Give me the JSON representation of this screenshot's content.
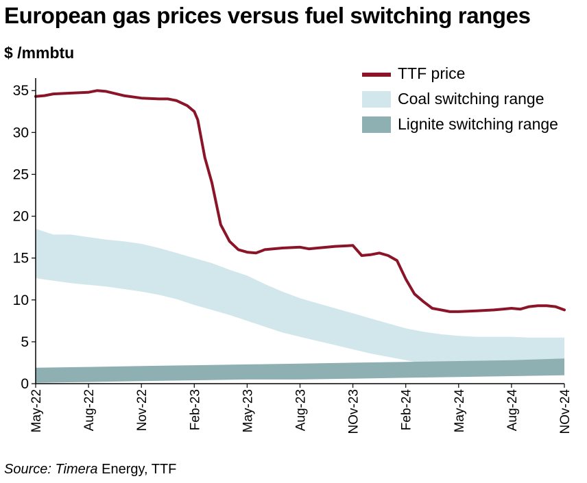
{
  "chart_data": {
    "type": "area",
    "title": "European gas prices versus fuel switching ranges",
    "ylabel": "$ /mmbtu",
    "xlabel": "",
    "ylim": [
      0,
      36
    ],
    "yticks": [
      0,
      5,
      10,
      15,
      20,
      25,
      30,
      35
    ],
    "x_range": [
      0,
      30
    ],
    "xtick_positions": [
      0,
      3,
      6,
      9,
      12,
      15,
      18,
      21,
      24,
      27,
      30
    ],
    "xtick_labels": [
      "May-22",
      "Aug-22",
      "Nov-22",
      "Feb-23",
      "May-23",
      "Aug-23",
      "NOv-23",
      "Feb-24",
      "May-24",
      "Aug-24",
      "NOv-24"
    ],
    "grid": false,
    "legend_position": "top-right",
    "series": [
      {
        "name": "TTF price",
        "kind": "line",
        "color": "#8b1528",
        "x": [
          0,
          0.5,
          1,
          2,
          3,
          3.5,
          4,
          5,
          6,
          7,
          7.5,
          8,
          8.6,
          9,
          9.2,
          9.6,
          10,
          10.5,
          11,
          11.5,
          12,
          12.5,
          13,
          14,
          15,
          15.5,
          16,
          17,
          18,
          18.5,
          19,
          19.5,
          20,
          20.5,
          21,
          21.5,
          22,
          22.5,
          23,
          23.5,
          24,
          25,
          26,
          26.5,
          27,
          27.5,
          28,
          28.5,
          29,
          29.5,
          30
        ],
        "values": [
          34.3,
          34.4,
          34.6,
          34.7,
          34.8,
          35.0,
          34.9,
          34.4,
          34.1,
          34.0,
          34.0,
          33.8,
          33.2,
          32.5,
          31.5,
          27.0,
          24.0,
          19.0,
          17.0,
          16.0,
          15.7,
          15.6,
          16.0,
          16.2,
          16.3,
          16.1,
          16.2,
          16.4,
          16.5,
          15.3,
          15.4,
          15.6,
          15.3,
          14.7,
          12.5,
          10.7,
          9.8,
          9.0,
          8.8,
          8.6,
          8.6,
          8.7,
          8.8,
          8.9,
          9.0,
          8.9,
          9.2,
          9.3,
          9.3,
          9.2,
          8.8
        ]
      },
      {
        "name": "Coal switching range",
        "kind": "band",
        "color": "#d2e7ec",
        "x": [
          0,
          1,
          2,
          3,
          4,
          5,
          6,
          7,
          8,
          9,
          10,
          11,
          12,
          13,
          14,
          15,
          16,
          17,
          18,
          19,
          20,
          21,
          22,
          23,
          24,
          25,
          26,
          27,
          28,
          29,
          30
        ],
        "upper": [
          18.5,
          17.8,
          17.8,
          17.5,
          17.2,
          17.0,
          16.7,
          16.2,
          15.6,
          15.0,
          14.4,
          13.6,
          12.9,
          11.9,
          11.0,
          10.2,
          9.6,
          9.0,
          8.4,
          7.8,
          7.2,
          6.6,
          6.2,
          5.9,
          5.7,
          5.6,
          5.6,
          5.6,
          5.5,
          5.5,
          5.5
        ],
        "lower": [
          12.6,
          12.3,
          12.0,
          11.8,
          11.6,
          11.3,
          11.0,
          10.6,
          10.1,
          9.4,
          8.8,
          8.2,
          7.5,
          6.8,
          6.1,
          5.6,
          5.1,
          4.6,
          4.1,
          3.6,
          3.2,
          2.8,
          2.4,
          2.0,
          1.6,
          1.5,
          1.4,
          1.3,
          1.2,
          1.1,
          1.0
        ]
      },
      {
        "name": "Lignite switching range",
        "kind": "band",
        "color": "#8fb0b3",
        "x": [
          0,
          3,
          6,
          9,
          12,
          15,
          18,
          21,
          24,
          27,
          30
        ],
        "upper": [
          1.9,
          2.0,
          2.1,
          2.2,
          2.3,
          2.4,
          2.5,
          2.6,
          2.7,
          2.8,
          3.0
        ],
        "lower": [
          0.1,
          0.2,
          0.3,
          0.4,
          0.5,
          0.5,
          0.6,
          0.7,
          0.8,
          0.9,
          1.0
        ]
      }
    ]
  },
  "source": {
    "prefix": "Source: ",
    "company": "Timera",
    "rest": " Energy, TTF"
  }
}
